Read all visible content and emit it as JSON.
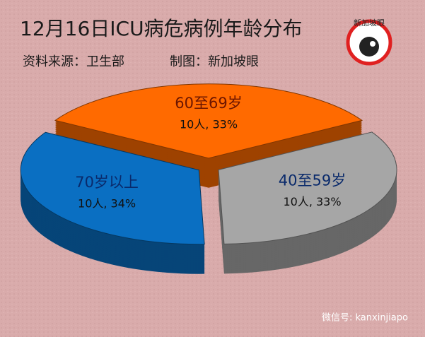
{
  "chart_data": {
    "type": "pie",
    "title": "12月16日ICU病危病例年龄分布",
    "source": "资料来源：卫生部",
    "credit": "制图：新加坡眼",
    "logo": "新加坡眼",
    "watermark": "微信号: kanxinjiapo",
    "categories": [
      "60至69岁",
      "40至59岁",
      "70岁以上"
    ],
    "values": [
      33,
      33,
      34
    ],
    "value_labels": [
      "10人, 33%",
      "10人, 33%",
      "10人, 34%"
    ],
    "colors": [
      "#ff6a00",
      "#a6a6a6",
      "#0a6fc2"
    ]
  }
}
